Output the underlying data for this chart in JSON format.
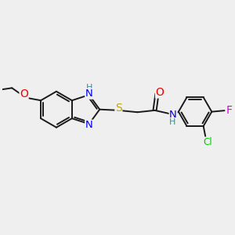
{
  "background_color": "#efefef",
  "bond_color": "#1a1a1a",
  "bond_width": 1.4,
  "atom_colors": {
    "N": "#0000ee",
    "O": "#ee0000",
    "S": "#bbaa00",
    "F": "#dd00dd",
    "Cl": "#00cc00",
    "H": "#448888",
    "C": "#1a1a1a"
  },
  "font_size": 8.5,
  "fig_width": 3.0,
  "fig_height": 3.0,
  "dpi": 100,
  "xlim": [
    0,
    10
  ],
  "ylim": [
    0,
    10
  ]
}
